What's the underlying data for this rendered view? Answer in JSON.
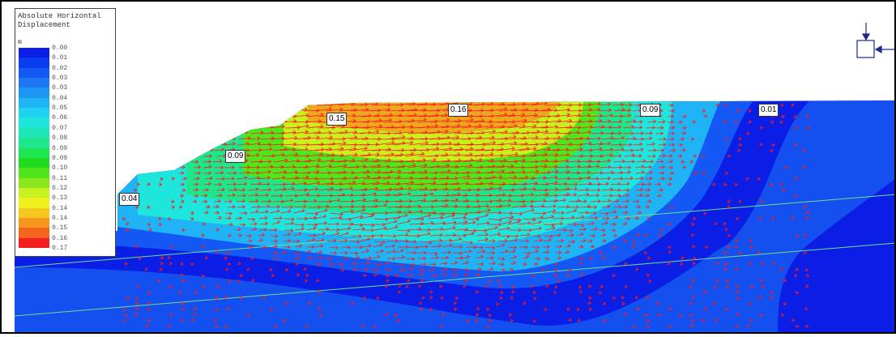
{
  "legend": {
    "title": "Absolute Horizontal Displacement",
    "unit": "m",
    "labels": [
      "0.00",
      "0.01",
      "0.02",
      "0.03",
      "0.03",
      "0.04",
      "0.05",
      "0.06",
      "0.07",
      "0.08",
      "0.09",
      "0.09",
      "0.10",
      "0.11",
      "0.12",
      "0.13",
      "0.14",
      "0.14",
      "0.15",
      "0.16",
      "0.17"
    ],
    "colors": [
      "#0a1ee6",
      "#0a3cf0",
      "#1458f5",
      "#1e78f5",
      "#1e96f5",
      "#1eb4f5",
      "#1ed2f0",
      "#1ee6dc",
      "#1ee6b4",
      "#1ee68c",
      "#1ee650",
      "#1edc1e",
      "#50e61e",
      "#8ce61e",
      "#c8f01e",
      "#f0f01e",
      "#f5c81e",
      "#f5961e",
      "#f5641e",
      "#f51e1e"
    ]
  },
  "callouts": [
    "0.04",
    "0.09",
    "0.15",
    "0.16",
    "0.09",
    "0.01"
  ]
}
